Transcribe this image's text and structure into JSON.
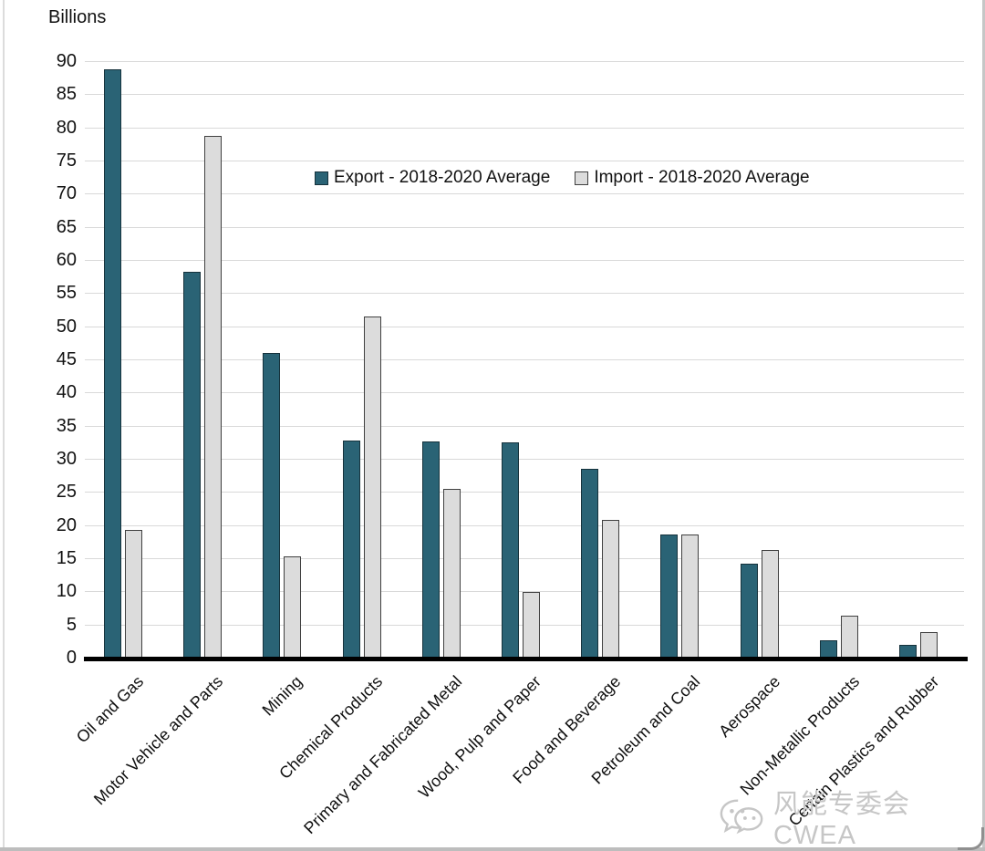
{
  "y_axis_title": "Billions",
  "legend": [
    {
      "label": "Export - 2018-2020 Average"
    },
    {
      "label": "Import - 2018-2020 Average"
    }
  ],
  "watermark": {
    "icon": "wechat-icon",
    "text": "风能专委会CWEA"
  },
  "chart_data": {
    "type": "bar",
    "title": "",
    "xlabel": "",
    "ylabel": "Billions",
    "ylim": [
      0,
      90
    ],
    "ytick_step": 5,
    "grid": true,
    "legend_position": "top-center",
    "categories": [
      "Oil and Gas",
      "Motor Vehicle and Parts",
      "Mining",
      "Chemical Products",
      "Primary and Fabricated Metal",
      "Wood, Pulp and Paper",
      "Food and Beverage",
      "Petroleum and Coal",
      "Aerospace",
      "Non-Metallic Products",
      "Certain Plastics and Rubber"
    ],
    "series": [
      {
        "name": "Export - 2018-2020 Average",
        "color": "#2a6375",
        "border_color": "#16323c",
        "values": [
          89,
          58.5,
          46.3,
          33,
          32.9,
          32.7,
          28.8,
          18.9,
          14.5,
          2.9,
          2.2
        ]
      },
      {
        "name": "Import - 2018-2020 Average",
        "color": "#dcdcdc",
        "border_color": "#404040",
        "values": [
          19.5,
          79,
          15.5,
          51.7,
          25.8,
          10.2,
          21,
          18.8,
          16.5,
          6.6,
          4.1
        ]
      }
    ]
  }
}
